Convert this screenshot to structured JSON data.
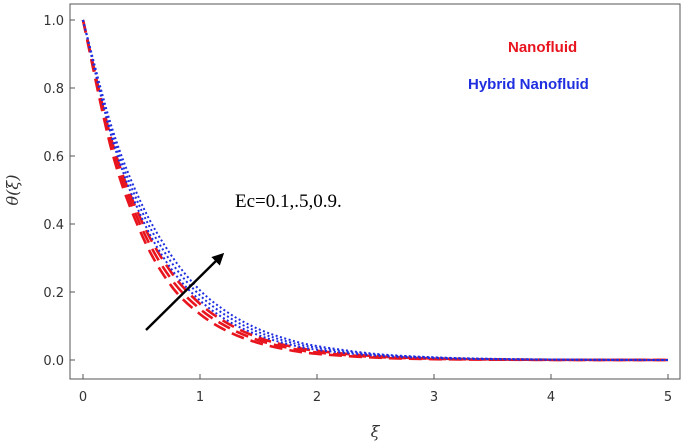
{
  "chart_data": {
    "type": "line",
    "title": "",
    "xlabel": "ξ",
    "ylabel": "θ(ξ)",
    "xlim": [
      0,
      5
    ],
    "ylim": [
      0,
      1
    ],
    "x_ticks": [
      0,
      1,
      2,
      3,
      4,
      5
    ],
    "y_ticks": [
      0.0,
      0.2,
      0.4,
      0.6,
      0.8,
      1.0
    ],
    "x_tick_labels": [
      "0",
      "1",
      "2",
      "3",
      "4",
      "5"
    ],
    "y_tick_labels": [
      "0.0",
      "0.2",
      "0.4",
      "0.6",
      "0.8",
      "1.0"
    ],
    "grid": false,
    "legend_position": "top-right",
    "legend": [
      {
        "name": "Nanofluid",
        "color": "#e8141e",
        "style": "dashed"
      },
      {
        "name": "Hybrid Nanofluid",
        "color": "#1f2fe0",
        "style": "dotted"
      }
    ],
    "x": [
      0,
      0.25,
      0.5,
      0.75,
      1.0,
      1.25,
      1.5,
      1.75,
      2.0,
      2.5,
      3.0,
      3.5,
      4.0,
      4.5,
      5.0
    ],
    "series": [
      {
        "name": "Nanofluid",
        "color": "#e8141e",
        "style": "dashed",
        "values": [
          1.0,
          0.61,
          0.37,
          0.22,
          0.135,
          0.082,
          0.05,
          0.03,
          0.018,
          0.007,
          0.0025,
          0.001,
          0.0003,
          0.0001,
          0.0
        ]
      },
      {
        "name": "Nanofluid",
        "color": "#e8141e",
        "style": "dashed",
        "values": [
          1.0,
          0.625,
          0.39,
          0.24,
          0.15,
          0.094,
          0.058,
          0.036,
          0.022,
          0.009,
          0.0035,
          0.0013,
          0.0005,
          0.0002,
          0.0
        ]
      },
      {
        "name": "Nanofluid",
        "color": "#e8141e",
        "style": "dashed",
        "values": [
          1.0,
          0.64,
          0.41,
          0.26,
          0.165,
          0.105,
          0.066,
          0.042,
          0.027,
          0.011,
          0.0045,
          0.0018,
          0.0007,
          0.0003,
          0.0
        ]
      },
      {
        "name": "Hybrid Nanofluid",
        "color": "#1f2fe0",
        "style": "dotted",
        "values": [
          1.0,
          0.65,
          0.42,
          0.27,
          0.175,
          0.113,
          0.073,
          0.047,
          0.03,
          0.013,
          0.0055,
          0.0023,
          0.001,
          0.0004,
          0.0
        ]
      },
      {
        "name": "Hybrid Nanofluid",
        "color": "#1f2fe0",
        "style": "dotted",
        "values": [
          1.0,
          0.665,
          0.44,
          0.29,
          0.19,
          0.125,
          0.082,
          0.054,
          0.036,
          0.016,
          0.007,
          0.003,
          0.0013,
          0.0005,
          0.0
        ]
      },
      {
        "name": "Hybrid Nanofluid",
        "color": "#1f2fe0",
        "style": "dotted",
        "values": [
          1.0,
          0.68,
          0.46,
          0.31,
          0.205,
          0.137,
          0.091,
          0.061,
          0.041,
          0.018,
          0.008,
          0.0035,
          0.0015,
          0.0006,
          0.0
        ]
      }
    ],
    "annotations": [
      {
        "text": "Ec=0.1,.5,0.9.",
        "arrow": true
      }
    ]
  }
}
